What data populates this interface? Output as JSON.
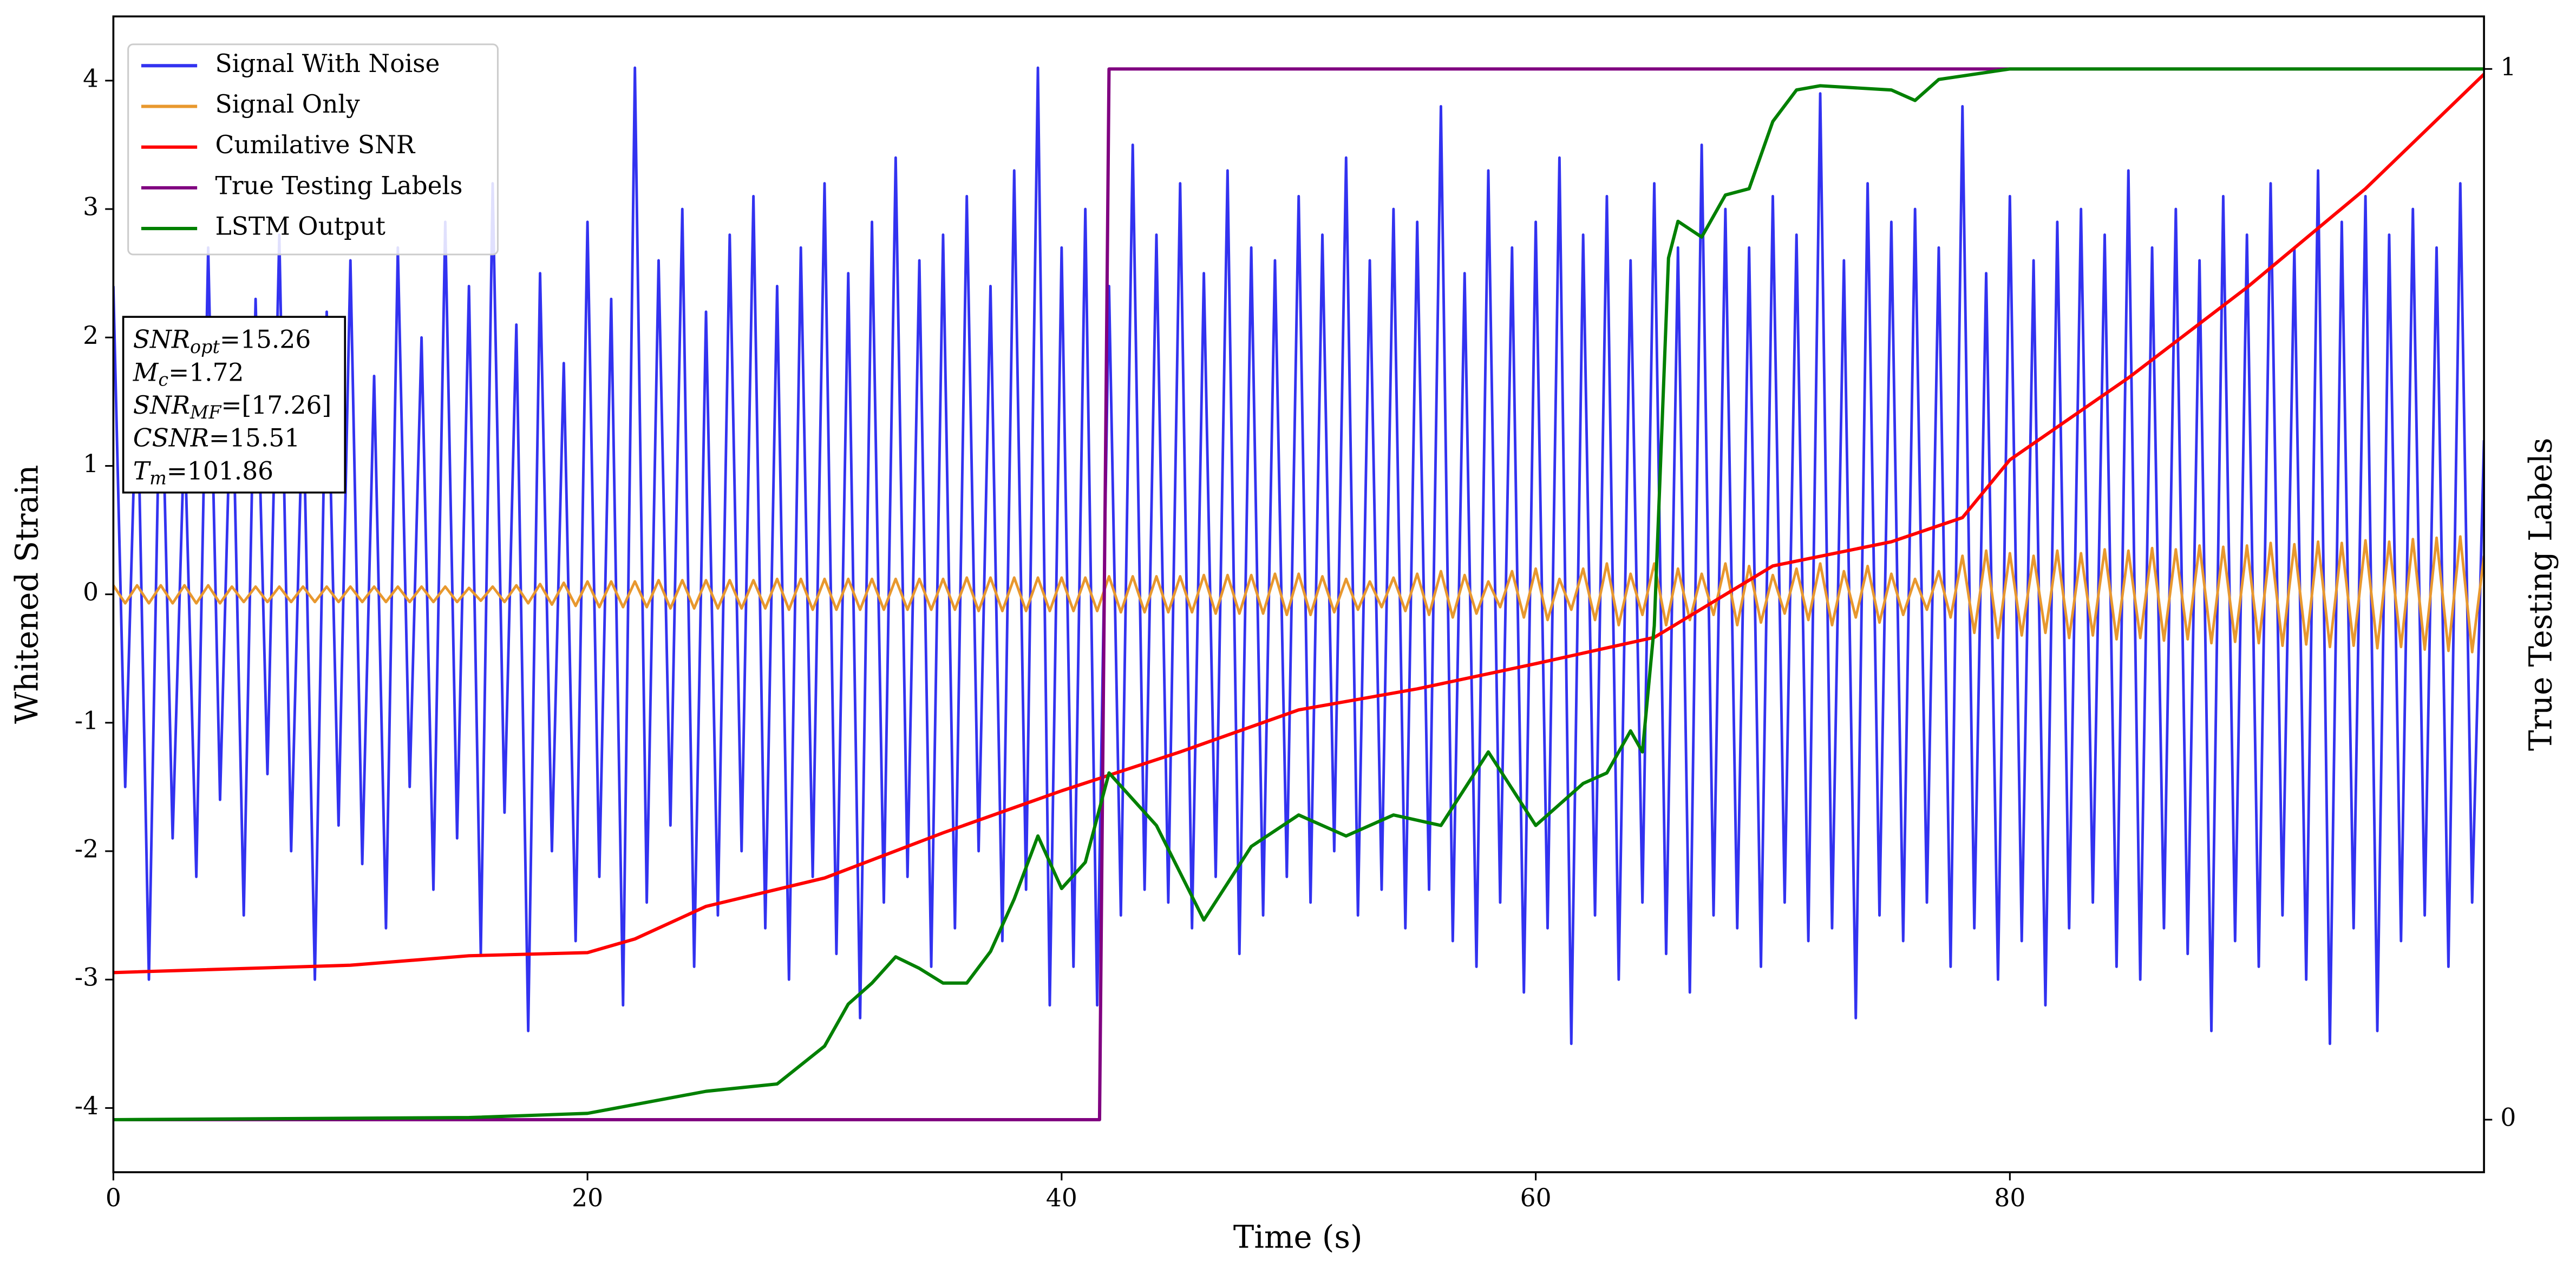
{
  "chart_data": {
    "type": "line",
    "xlabel": "Time (s)",
    "ylabel": "Whitened Strain",
    "y2label": "True Testing Labels",
    "xlim": [
      0,
      100
    ],
    "ylim": [
      -4.5,
      4.5
    ],
    "y2lim": [
      -0.05,
      1.05
    ],
    "xticks": [
      0,
      20,
      40,
      60,
      80
    ],
    "yticks": [
      -4,
      -3,
      -2,
      -1,
      0,
      1,
      2,
      3,
      4
    ],
    "y2ticks": [
      0,
      1
    ],
    "legend": "upper left",
    "x": [
      0,
      0.5,
      1,
      1.5,
      2,
      2.5,
      3,
      3.5,
      4,
      4.5,
      5,
      5.5,
      6,
      6.5,
      7,
      7.5,
      8,
      8.5,
      9,
      9.5,
      10,
      10.5,
      11,
      11.5,
      12,
      12.5,
      13,
      13.5,
      14,
      14.5,
      15,
      15.5,
      16,
      16.5,
      17,
      17.5,
      18,
      18.5,
      19,
      19.5,
      20,
      20.5,
      21,
      21.5,
      22,
      22.5,
      23,
      23.5,
      24,
      24.5,
      25,
      25.5,
      26,
      26.5,
      27,
      27.5,
      28,
      28.5,
      29,
      29.5,
      30,
      30.5,
      31,
      31.5,
      32,
      32.5,
      33,
      33.5,
      34,
      34.5,
      35,
      35.5,
      36,
      36.5,
      37,
      37.5,
      38,
      38.5,
      39,
      39.5,
      40,
      40.5,
      41,
      41.5,
      42,
      42.5,
      43,
      43.5,
      44,
      44.5,
      45,
      45.5,
      46,
      46.5,
      47,
      47.5,
      48,
      48.5,
      49,
      49.5,
      50,
      50.5,
      51,
      51.5,
      52,
      52.5,
      53,
      53.5,
      54,
      54.5,
      55,
      55.5,
      56,
      56.5,
      57,
      57.5,
      58,
      58.5,
      59,
      59.5,
      60,
      60.5,
      61,
      61.5,
      62,
      62.5,
      63,
      63.5,
      64,
      64.5,
      65,
      65.5,
      66,
      66.5,
      67,
      67.5,
      68,
      68.5,
      69,
      69.5,
      70,
      70.5,
      71,
      71.5,
      72,
      72.5,
      73,
      73.5,
      74,
      74.5,
      75,
      75.5,
      76,
      76.5,
      77,
      77.5,
      78,
      78.5,
      79,
      79.5,
      80,
      80.5,
      81,
      81.5,
      82,
      82.5,
      83,
      83.5,
      84,
      84.5,
      85,
      85.5,
      86,
      86.5,
      87,
      87.5,
      88,
      88.5,
      89,
      89.5,
      90,
      90.5,
      91,
      91.5,
      92,
      92.5,
      93,
      93.5,
      94,
      94.5,
      95,
      95.5,
      96,
      96.5,
      97,
      97.5,
      98,
      98.5,
      99,
      99.5,
      100
    ],
    "series": [
      {
        "name": "Signal With Noise",
        "color": "#3232f0",
        "values": [
          2.4,
          -1.5,
          1.8,
          -3.0,
          2.1,
          -1.9,
          1.3,
          -2.2,
          2.7,
          -1.6,
          1.9,
          -2.5,
          2.3,
          -1.4,
          2.8,
          -2.0,
          1.6,
          -3.0,
          2.2,
          -1.8,
          2.6,
          -2.1,
          1.7,
          -2.6,
          2.7,
          -1.5,
          2.0,
          -2.3,
          2.9,
          -1.9,
          2.4,
          -2.8,
          3.2,
          -1.7,
          2.1,
          -3.4,
          2.5,
          -2.0,
          1.8,
          -2.7,
          2.9,
          -2.2,
          2.3,
          -3.2,
          4.1,
          -2.4,
          2.6,
          -1.8,
          3.0,
          -2.9,
          2.2,
          -2.5,
          2.8,
          -2.0,
          3.1,
          -2.6,
          2.4,
          -3.0,
          2.7,
          -2.2,
          3.2,
          -2.8,
          2.5,
          -3.3,
          2.9,
          -2.4,
          3.4,
          -2.2,
          2.6,
          -2.9,
          2.8,
          -2.6,
          3.1,
          -2.0,
          2.4,
          -2.7,
          3.3,
          -2.3,
          4.1,
          -3.2,
          2.7,
          -2.9,
          3.0,
          -3.2,
          2.4,
          -2.5,
          3.5,
          -2.3,
          2.8,
          -2.4,
          3.2,
          -2.6,
          2.5,
          -2.2,
          3.3,
          -2.8,
          2.7,
          -2.5,
          2.6,
          -2.2,
          3.1,
          -2.4,
          2.8,
          -2.0,
          3.4,
          -2.5,
          2.6,
          -2.3,
          3.0,
          -2.6,
          2.9,
          -2.3,
          3.8,
          -2.7,
          2.5,
          -2.9,
          3.3,
          -2.4,
          2.7,
          -3.1,
          2.9,
          -2.6,
          3.4,
          -3.5,
          2.8,
          -2.5,
          3.1,
          -3.0,
          2.6,
          -2.4,
          3.2,
          -2.8,
          2.7,
          -3.1,
          3.5,
          -2.5,
          3.0,
          -2.6,
          2.7,
          -2.9,
          3.1,
          -2.4,
          2.8,
          -2.7,
          3.9,
          -2.6,
          2.6,
          -3.3,
          3.2,
          -2.5,
          2.9,
          -2.7,
          3.0,
          -2.4,
          2.7,
          -2.9,
          3.8,
          -2.6,
          2.5,
          -3.0,
          3.1,
          -2.7,
          2.6,
          -3.2,
          2.9,
          -2.6,
          3.0,
          -2.4,
          2.8,
          -2.9,
          3.3,
          -3.0,
          2.7,
          -2.6,
          3.0,
          -2.8,
          2.6,
          -3.4,
          3.1,
          -2.7,
          2.8,
          -2.9,
          3.2,
          -2.5,
          2.7,
          -3.0,
          3.3,
          -3.5,
          2.9,
          -2.6,
          3.1,
          -3.4,
          2.8,
          -2.7,
          3.0,
          -2.5,
          2.7,
          -2.9,
          3.2,
          -2.4,
          1.2
        ]
      },
      {
        "name": "Signal Only",
        "color": "#e8982e",
        "values": [
          0.07,
          -0.07,
          0.07,
          -0.07,
          0.07,
          -0.07,
          0.07,
          -0.07,
          0.07,
          -0.07,
          0.06,
          -0.06,
          0.06,
          -0.06,
          0.06,
          -0.06,
          0.06,
          -0.06,
          0.06,
          -0.06,
          0.06,
          -0.06,
          0.06,
          -0.06,
          0.06,
          -0.06,
          0.06,
          -0.06,
          0.06,
          -0.06,
          0.05,
          -0.05,
          0.06,
          -0.06,
          0.07,
          -0.07,
          0.08,
          -0.08,
          0.09,
          -0.09,
          0.1,
          -0.1,
          0.1,
          -0.1,
          0.1,
          -0.1,
          0.11,
          -0.11,
          0.11,
          -0.11,
          0.11,
          -0.11,
          0.11,
          -0.11,
          0.11,
          -0.11,
          0.12,
          -0.12,
          0.12,
          -0.12,
          0.12,
          -0.12,
          0.12,
          -0.12,
          0.12,
          -0.12,
          0.12,
          -0.12,
          0.12,
          -0.12,
          0.12,
          -0.12,
          0.13,
          -0.13,
          0.13,
          -0.13,
          0.13,
          -0.13,
          0.13,
          -0.13,
          0.13,
          -0.13,
          0.13,
          -0.13,
          0.14,
          -0.14,
          0.14,
          -0.14,
          0.14,
          -0.14,
          0.14,
          -0.14,
          0.15,
          -0.15,
          0.15,
          -0.15,
          0.15,
          -0.15,
          0.16,
          -0.16,
          0.16,
          -0.16,
          0.14,
          -0.14,
          0.12,
          -0.12,
          0.1,
          -0.1,
          0.13,
          -0.13,
          0.16,
          -0.16,
          0.18,
          -0.18,
          0.15,
          -0.15,
          0.1,
          -0.1,
          0.18,
          -0.18,
          0.2,
          -0.2,
          0.12,
          -0.12,
          0.2,
          -0.2,
          0.24,
          -0.24,
          0.16,
          -0.16,
          0.24,
          -0.24,
          0.2,
          -0.2,
          0.16,
          -0.16,
          0.24,
          -0.24,
          0.22,
          -0.22,
          0.15,
          -0.15,
          0.2,
          -0.2,
          0.24,
          -0.24,
          0.18,
          -0.18,
          0.22,
          -0.22,
          0.16,
          -0.16,
          0.12,
          -0.12,
          0.18,
          -0.18,
          0.3,
          -0.3,
          0.34,
          -0.34,
          0.32,
          -0.32,
          0.3,
          -0.3,
          0.34,
          -0.34,
          0.32,
          -0.32,
          0.35,
          -0.35,
          0.34,
          -0.34,
          0.36,
          -0.36,
          0.35,
          -0.35,
          0.38,
          -0.38,
          0.37,
          -0.37,
          0.38,
          -0.38,
          0.4,
          -0.4,
          0.39,
          -0.39,
          0.41,
          -0.41,
          0.4,
          -0.4,
          0.42,
          -0.42,
          0.41,
          -0.41,
          0.43,
          -0.43,
          0.44,
          -0.44,
          0.45,
          -0.45,
          0.3
        ]
      },
      {
        "name": "Cumilative SNR",
        "color": "#ff0000",
        "axis": "y2",
        "x": [
          0,
          10,
          15,
          20,
          22,
          25,
          30,
          35,
          40,
          45,
          50,
          55,
          60,
          65,
          70,
          75,
          78,
          80,
          85,
          90,
          95,
          100
        ],
        "values": [
          0.14,
          0.147,
          0.156,
          0.159,
          0.172,
          0.203,
          0.23,
          0.273,
          0.313,
          0.35,
          0.39,
          0.41,
          0.434,
          0.459,
          0.527,
          0.55,
          0.573,
          0.628,
          0.706,
          0.792,
          0.886,
          0.995
        ]
      },
      {
        "name": "True Testing Labels",
        "color": "#800080",
        "axis": "y2",
        "x": [
          0,
          41.6,
          42,
          100
        ],
        "values": [
          0,
          0,
          1,
          1
        ]
      },
      {
        "name": "LSTM Output",
        "color": "#008000",
        "axis": "y2",
        "x": [
          0,
          15,
          20,
          25,
          28,
          30,
          31,
          32,
          33,
          34,
          35,
          36,
          37,
          38,
          39,
          40,
          41,
          42,
          44,
          46,
          48,
          50,
          52,
          54,
          56,
          58,
          60,
          62,
          63,
          64,
          64.5,
          65,
          65.6,
          66,
          67,
          68,
          69,
          70,
          71,
          72,
          75,
          76,
          77,
          80,
          100
        ],
        "values": [
          0,
          0.002,
          0.006,
          0.027,
          0.034,
          0.07,
          0.11,
          0.13,
          0.155,
          0.144,
          0.13,
          0.13,
          0.16,
          0.21,
          0.27,
          0.22,
          0.245,
          0.33,
          0.28,
          0.19,
          0.26,
          0.29,
          0.27,
          0.29,
          0.28,
          0.35,
          0.28,
          0.32,
          0.33,
          0.37,
          0.35,
          0.47,
          0.82,
          0.855,
          0.84,
          0.88,
          0.886,
          0.95,
          0.98,
          0.984,
          0.98,
          0.97,
          0.99,
          1,
          1
        ]
      }
    ],
    "annotations": [
      {
        "symbol": "SNR",
        "subscript": "opt",
        "text": "=15.26"
      },
      {
        "symbol": "M",
        "subscript": "c",
        "text": "=1.72"
      },
      {
        "symbol": "SNR",
        "subscript": "MF",
        "text": "=[17.26]"
      },
      {
        "symbol": "CSNR",
        "subscript": "",
        "text": "=15.51"
      },
      {
        "symbol": "T",
        "subscript": "m",
        "text": "=101.86"
      }
    ]
  }
}
